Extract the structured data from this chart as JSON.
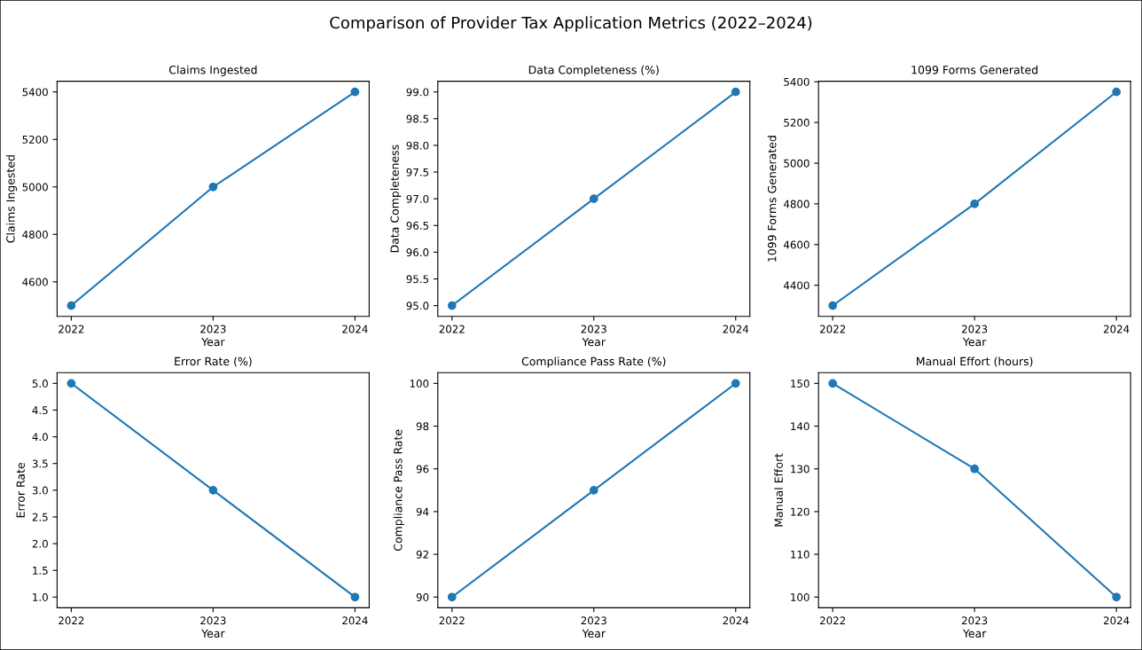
{
  "chart_data": [
    {
      "type": "line",
      "title": "Claims Ingested",
      "xlabel": "Year",
      "ylabel": "Claims Ingested",
      "annotations": [
        "Comparison of Provider Tax Application Metrics (2022–2024)"
      ],
      "x": [
        2022,
        2023,
        2024
      ],
      "series": [
        {
          "color": "#1f77b4",
          "values": [
            4500,
            5000,
            5400
          ]
        }
      ],
      "marker": "circle",
      "line_style": "solid",
      "grid": false,
      "xlim": [
        2021.9,
        2024.1
      ],
      "xticks": [
        2022,
        2023,
        2024
      ],
      "ylim": [
        4455,
        5445
      ],
      "yticks": [
        4600,
        4800,
        5000,
        5200,
        5400
      ]
    },
    {
      "type": "line",
      "title": "Data Completeness (%)",
      "xlabel": "Year",
      "ylabel": "Data Completeness",
      "x": [
        2022,
        2023,
        2024
      ],
      "series": [
        {
          "color": "#1f77b4",
          "values": [
            95,
            97,
            99
          ]
        }
      ],
      "marker": "circle",
      "line_style": "solid",
      "grid": false,
      "xlim": [
        2021.9,
        2024.1
      ],
      "xticks": [
        2022,
        2023,
        2024
      ],
      "ylim": [
        94.8,
        99.2
      ],
      "yticks": [
        {
          "value": 95,
          "label": "95.0"
        },
        {
          "value": 95.5,
          "label": "95.5"
        },
        {
          "value": 96,
          "label": "96.0"
        },
        {
          "value": 96.5,
          "label": "96.5"
        },
        {
          "value": 97,
          "label": "97.0"
        },
        {
          "value": 97.5,
          "label": "97.5"
        },
        {
          "value": 98,
          "label": "98.0"
        },
        {
          "value": 98.5,
          "label": "98.5"
        },
        {
          "value": 99,
          "label": "99.0"
        }
      ]
    },
    {
      "type": "line",
      "title": "1099 Forms Generated",
      "xlabel": "Year",
      "ylabel": "1099 Forms Generated",
      "x": [
        2022,
        2023,
        2024
      ],
      "series": [
        {
          "color": "#1f77b4",
          "values": [
            4300,
            4800,
            5350
          ]
        }
      ],
      "marker": "circle",
      "line_style": "solid",
      "grid": false,
      "xlim": [
        2021.9,
        2024.1
      ],
      "xticks": [
        2022,
        2023,
        2024
      ],
      "ylim": [
        4247.5,
        5402.5
      ],
      "yticks": [
        4400,
        4600,
        4800,
        5000,
        5200,
        5400
      ]
    },
    {
      "type": "line",
      "title": "Error Rate (%)",
      "xlabel": "Year",
      "ylabel": "Error Rate",
      "x": [
        2022,
        2023,
        2024
      ],
      "series": [
        {
          "color": "#1f77b4",
          "values": [
            5,
            3,
            1
          ]
        }
      ],
      "marker": "circle",
      "line_style": "solid",
      "grid": false,
      "xlim": [
        2021.9,
        2024.1
      ],
      "xticks": [
        2022,
        2023,
        2024
      ],
      "ylim": [
        0.8,
        5.2
      ],
      "yticks": [
        {
          "value": 1,
          "label": "1.0"
        },
        {
          "value": 1.5,
          "label": "1.5"
        },
        {
          "value": 2,
          "label": "2.0"
        },
        {
          "value": 2.5,
          "label": "2.5"
        },
        {
          "value": 3,
          "label": "3.0"
        },
        {
          "value": 3.5,
          "label": "3.5"
        },
        {
          "value": 4,
          "label": "4.0"
        },
        {
          "value": 4.5,
          "label": "4.5"
        },
        {
          "value": 5,
          "label": "5.0"
        }
      ]
    },
    {
      "type": "line",
      "title": "Compliance Pass Rate (%)",
      "xlabel": "Year",
      "ylabel": "Compliance Pass Rate",
      "x": [
        2022,
        2023,
        2024
      ],
      "series": [
        {
          "color": "#1f77b4",
          "values": [
            90,
            95,
            100
          ]
        }
      ],
      "marker": "circle",
      "line_style": "solid",
      "grid": false,
      "xlim": [
        2021.9,
        2024.1
      ],
      "xticks": [
        2022,
        2023,
        2024
      ],
      "ylim": [
        89.5,
        100.5
      ],
      "yticks": [
        90,
        92,
        94,
        96,
        98,
        100
      ]
    },
    {
      "type": "line",
      "title": "Manual Effort (hours)",
      "xlabel": "Year",
      "ylabel": "Manual Effort",
      "x": [
        2022,
        2023,
        2024
      ],
      "series": [
        {
          "color": "#1f77b4",
          "values": [
            150,
            130,
            100
          ]
        }
      ],
      "marker": "circle",
      "line_style": "solid",
      "grid": false,
      "xlim": [
        2021.9,
        2024.1
      ],
      "xticks": [
        2022,
        2023,
        2024
      ],
      "ylim": [
        97.5,
        152.5
      ],
      "yticks": [
        100,
        110,
        120,
        130,
        140,
        150
      ]
    }
  ]
}
